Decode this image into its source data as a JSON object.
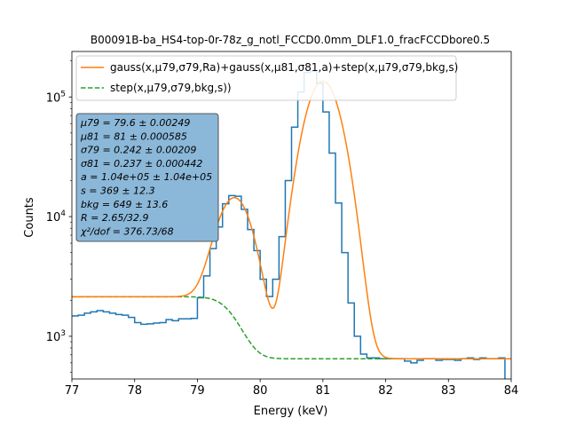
{
  "chart_data": {
    "type": "line",
    "title": "B00091B-ba_HS4-top-0r-78z_g_notl_FCCD0.0mm_DLF1.0_fracFCCDbore0.5",
    "xlabel": "Energy (keV)",
    "ylabel": "Counts",
    "xlim": [
      77,
      84
    ],
    "ylim": [
      440,
      240000
    ],
    "yscale": "log",
    "x_ticks": [
      77,
      78,
      79,
      80,
      81,
      82,
      83,
      84
    ],
    "y_ticks": [
      {
        "value": 1000,
        "base": "10",
        "exp": "3"
      },
      {
        "value": 10000,
        "base": "10",
        "exp": "4"
      },
      {
        "value": 100000,
        "base": "10",
        "exp": "5"
      }
    ],
    "legend_position": "top-left",
    "grid": false,
    "colors": {
      "data": "#1f77b4",
      "fit": "#ff7f0e",
      "step": "#2ca02c",
      "textbox_fill": "#8bb8d9",
      "textbox_edge": "#333333"
    },
    "series": [
      {
        "name": "gauss(x,μ79,σ79,Ra)+gauss(x,μ81,σ81,a)+step(x,μ79,σ79,bkg,s)",
        "style": "solid",
        "color": "#ff7f0e"
      },
      {
        "name": "step(x,μ79,σ79,bkg,s))",
        "style": "dashed",
        "color": "#2ca02c"
      }
    ],
    "histogram": {
      "color": "#1f77b4",
      "bin_width": 0.1,
      "x_start": 77.0,
      "counts": [
        1480,
        1500,
        1560,
        1600,
        1640,
        1600,
        1560,
        1520,
        1500,
        1440,
        1300,
        1260,
        1270,
        1290,
        1300,
        1380,
        1350,
        1400,
        1400,
        1410,
        2100,
        3200,
        5400,
        8200,
        12800,
        15000,
        14800,
        11500,
        7800,
        5200,
        3000,
        2150,
        3000,
        6800,
        20000,
        56000,
        110000,
        160000,
        165000,
        130000,
        75000,
        34000,
        13000,
        5000,
        1900,
        1000,
        710,
        660,
        660,
        650,
        650,
        650,
        650,
        620,
        600,
        630,
        650,
        650,
        630,
        640,
        640,
        630,
        650,
        660,
        640,
        660,
        650,
        650,
        660,
        420
      ]
    },
    "fit_parameters": {
      "mu79": "79.6 ± 0.00249",
      "mu81": "81 ± 0.000585",
      "sigma79": "0.242 ± 0.00209",
      "sigma81": "0.237 ± 0.000442",
      "a": "1.04e+05 ± 1.04e+05",
      "s": "369 ± 12.3",
      "bkg": "649 ± 13.6",
      "R": "2.65/32.9",
      "chi2_dof": "376.73/68"
    },
    "fit_model": {
      "mu79": 79.6,
      "mu81": 81.0,
      "sigma79": 0.242,
      "sigma81": 0.237,
      "A81": 135000,
      "A79": 13000,
      "bkg": 649,
      "s": 745
    }
  },
  "textbox": {
    "lines": [
      "μ79 = 79.6 ± 0.00249",
      "μ81 = 81 ± 0.000585",
      "σ79 = 0.242 ± 0.00209",
      "σ81 = 0.237 ± 0.000442",
      "a = 1.04e+05 ± 1.04e+05",
      "s = 369 ± 12.3",
      "bkg = 649 ± 13.6",
      "R = 2.65/32.9",
      "χ²/dof = 376.73/68"
    ]
  }
}
